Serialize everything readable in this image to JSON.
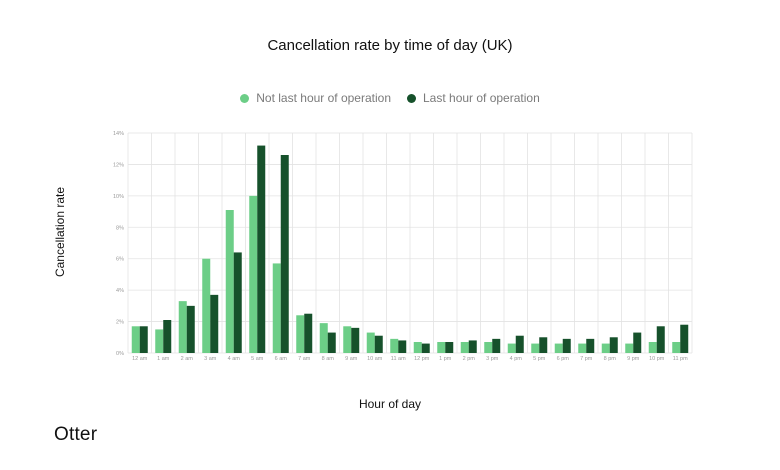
{
  "colors": {
    "light_series": "#6cce87",
    "dark_series": "#16512b",
    "grid": "#e3e3e3"
  },
  "brand": "Otter",
  "chart_data": {
    "type": "bar",
    "title": "Cancellation rate by time of day (UK)",
    "xlabel": "Hour of day",
    "ylabel": "Cancellation rate",
    "ylim": [
      0,
      14
    ],
    "grid": true,
    "legend_position": "top-center",
    "yticks": [
      "0%",
      "2%",
      "4%",
      "6%",
      "8%",
      "10%",
      "12%",
      "14%"
    ],
    "categories": [
      "12 am",
      "1 am",
      "2 am",
      "3 am",
      "4 am",
      "5 am",
      "6 am",
      "7 am",
      "8 am",
      "9 am",
      "10 am",
      "11 am",
      "12 pm",
      "1 pm",
      "2 pm",
      "3 pm",
      "4 pm",
      "5 pm",
      "6 pm",
      "7 pm",
      "8 pm",
      "9 pm",
      "10 pm",
      "11 pm"
    ],
    "series": [
      {
        "name": "Not last hour of operation",
        "values": [
          1.7,
          1.5,
          3.3,
          6.0,
          9.1,
          10.0,
          5.7,
          2.4,
          1.9,
          1.7,
          1.3,
          0.9,
          0.7,
          0.7,
          0.7,
          0.7,
          0.6,
          0.6,
          0.6,
          0.6,
          0.6,
          0.6,
          0.7,
          0.7
        ]
      },
      {
        "name": "Last hour of operation",
        "values": [
          1.7,
          2.1,
          3.0,
          3.7,
          6.4,
          13.2,
          12.6,
          2.5,
          1.3,
          1.6,
          1.1,
          0.8,
          0.6,
          0.7,
          0.8,
          0.9,
          1.1,
          1.0,
          0.9,
          0.9,
          1.0,
          1.3,
          1.7,
          1.8
        ]
      }
    ]
  }
}
